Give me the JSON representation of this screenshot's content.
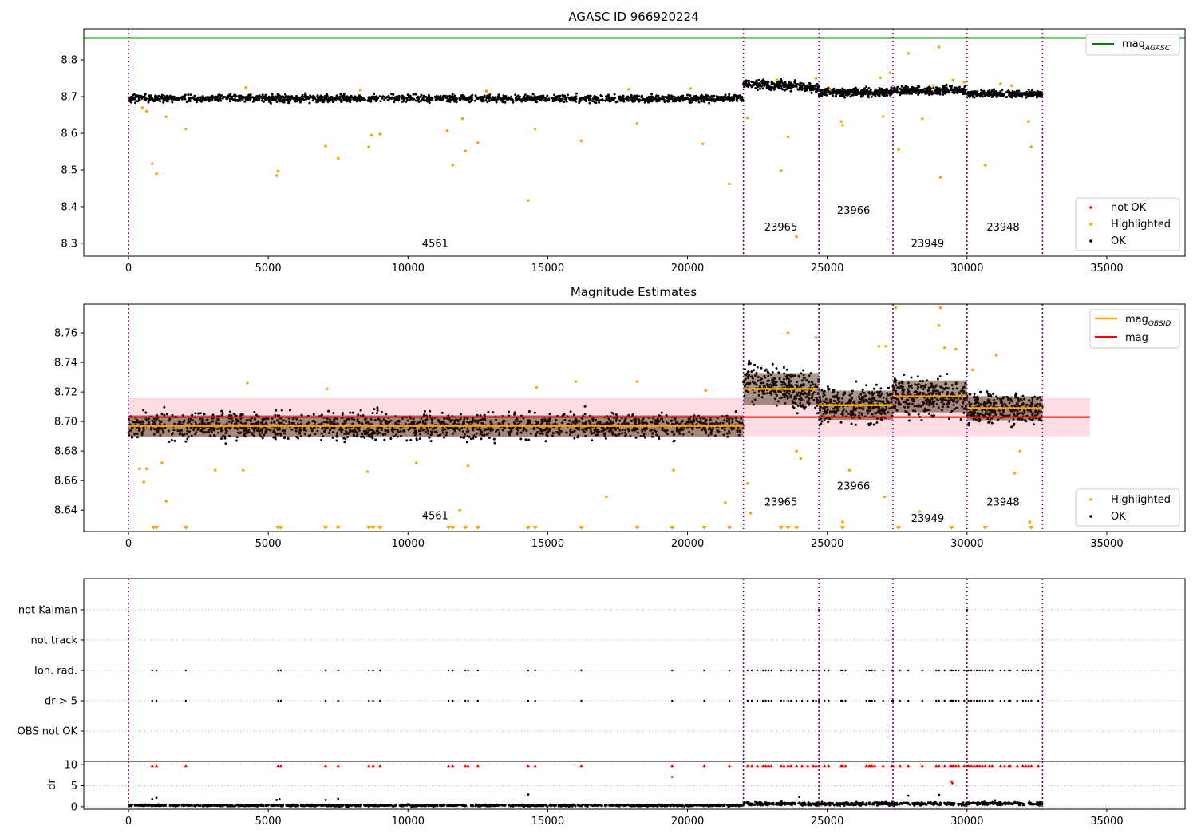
{
  "colors": {
    "ok": "#000000",
    "highlighted": "#ffa500",
    "not_ok": "#ff0000",
    "agasc_line": "#008000",
    "mag_line": "#ff0000",
    "obsid_line": "#ffa500",
    "obsid_divider": "#800080",
    "band_fill": "#ffc0cb"
  },
  "obsid_boundaries": [
    0,
    22000,
    24700,
    27350,
    30000,
    32700
  ],
  "obsids": [
    {
      "label": "4561",
      "x": 10500,
      "y_top": 8.29,
      "y_mid": 8.634
    },
    {
      "label": "23965",
      "x": 22750,
      "y_top": 8.335,
      "y_mid": 8.643
    },
    {
      "label": "23966",
      "x": 25350,
      "y_top": 8.38,
      "y_mid": 8.654
    },
    {
      "label": "23949",
      "x": 28000,
      "y_top": 8.29,
      "y_mid": 8.632
    },
    {
      "label": "23948",
      "x": 30700,
      "y_top": 8.335,
      "y_mid": 8.643
    }
  ],
  "chart_data": [
    {
      "id": "top",
      "type": "scatter",
      "title": "AGASC ID 966920224",
      "xlim": [
        -1600,
        37800
      ],
      "ylim": [
        8.265,
        8.885
      ],
      "xticks": [
        0,
        5000,
        10000,
        15000,
        20000,
        25000,
        30000,
        35000
      ],
      "xtick_labels": [
        "0",
        "5000",
        "10000",
        "15000",
        "20000",
        "25000",
        "30000",
        "35000"
      ],
      "yticks": [
        8.3,
        8.4,
        8.5,
        8.6,
        8.7,
        8.8
      ],
      "ytick_labels": [
        "8.3",
        "8.4",
        "8.5",
        "8.6",
        "8.7",
        "8.8"
      ],
      "mag_agasc": 8.86,
      "segments": [
        {
          "x0": 0,
          "x1": 22000,
          "center": 8.695,
          "spread": 0.009
        },
        {
          "x0": 22000,
          "x1": 24700,
          "center": 8.728,
          "spread": 0.011
        },
        {
          "x0": 24700,
          "x1": 27350,
          "center": 8.712,
          "spread": 0.01
        },
        {
          "x0": 27350,
          "x1": 30000,
          "center": 8.717,
          "spread": 0.01
        },
        {
          "x0": 30000,
          "x1": 32700,
          "center": 8.707,
          "spread": 0.008
        }
      ],
      "highlighted_points": [
        [
          500,
          8.67
        ],
        [
          650,
          8.66
        ],
        [
          850,
          8.517
        ],
        [
          1000,
          8.49
        ],
        [
          1350,
          8.645
        ],
        [
          2050,
          8.612
        ],
        [
          5300,
          8.485
        ],
        [
          5350,
          8.497
        ],
        [
          7050,
          8.565
        ],
        [
          7500,
          8.532
        ],
        [
          8600,
          8.563
        ],
        [
          8700,
          8.595
        ],
        [
          9000,
          8.598
        ],
        [
          11400,
          8.607
        ],
        [
          11600,
          8.513
        ],
        [
          11950,
          8.64
        ],
        [
          12050,
          8.552
        ],
        [
          12500,
          8.574
        ],
        [
          14300,
          8.417
        ],
        [
          14550,
          8.612
        ],
        [
          16200,
          8.579
        ],
        [
          18200,
          8.627
        ],
        [
          20550,
          8.571
        ],
        [
          21500,
          8.462
        ],
        [
          22150,
          8.642
        ],
        [
          23350,
          8.498
        ],
        [
          23600,
          8.59
        ],
        [
          23900,
          8.318
        ],
        [
          25550,
          8.622
        ],
        [
          25500,
          8.632
        ],
        [
          27000,
          8.646
        ],
        [
          27550,
          8.556
        ],
        [
          27900,
          8.818
        ],
        [
          28400,
          8.64
        ],
        [
          29000,
          8.835
        ],
        [
          29050,
          8.48
        ],
        [
          29500,
          8.745
        ],
        [
          29900,
          8.74
        ],
        [
          30650,
          8.513
        ],
        [
          31200,
          8.735
        ],
        [
          32300,
          8.563
        ],
        [
          32200,
          8.632
        ],
        [
          24600,
          8.75
        ],
        [
          26900,
          8.752
        ],
        [
          27250,
          8.765
        ],
        [
          12800,
          8.715
        ],
        [
          4200,
          8.725
        ],
        [
          17900,
          8.72
        ],
        [
          20100,
          8.722
        ],
        [
          8300,
          8.718
        ],
        [
          31600,
          8.73
        ],
        [
          23200,
          8.745
        ],
        [
          25100,
          8.72
        ],
        [
          28800,
          8.73
        ]
      ],
      "legend": [
        {
          "label": "mag",
          "subscript": "AGASC",
          "kind": "line",
          "color_key": "agasc_line",
          "position": "top-right"
        },
        {
          "label": "not OK",
          "kind": "marker",
          "color_key": "not_ok",
          "position": "bottom-right"
        },
        {
          "label": "Highlighted",
          "kind": "marker",
          "color_key": "highlighted",
          "position": "bottom-right"
        },
        {
          "label": "OK",
          "kind": "marker",
          "color_key": "ok",
          "position": "bottom-right"
        }
      ]
    },
    {
      "id": "middle",
      "type": "scatter",
      "title": "Magnitude Estimates",
      "xlim": [
        -1600,
        37800
      ],
      "ylim": [
        8.6255,
        8.7795
      ],
      "xticks": [
        0,
        5000,
        10000,
        15000,
        20000,
        25000,
        30000,
        35000
      ],
      "xtick_labels": [
        "0",
        "5000",
        "10000",
        "15000",
        "20000",
        "25000",
        "30000",
        "35000"
      ],
      "yticks": [
        8.64,
        8.66,
        8.68,
        8.7,
        8.72,
        8.74,
        8.76
      ],
      "ytick_labels": [
        "8.64",
        "8.66",
        "8.68",
        "8.70",
        "8.72",
        "8.74",
        "8.76"
      ],
      "mag": 8.703,
      "mag_band": [
        8.69,
        8.716
      ],
      "mag_x_range": [
        0,
        34400
      ],
      "mag_obsid": [
        {
          "x0": 0,
          "x1": 22000,
          "value": 8.697
        },
        {
          "x0": 22000,
          "x1": 24700,
          "value": 8.722
        },
        {
          "x0": 24700,
          "x1": 27350,
          "value": 8.711
        },
        {
          "x0": 27350,
          "x1": 30000,
          "value": 8.717
        },
        {
          "x0": 30000,
          "x1": 32700,
          "value": 8.709
        }
      ],
      "segments": [
        {
          "x0": 0,
          "x1": 22000,
          "center": 8.697,
          "spread": 0.008
        },
        {
          "x0": 22000,
          "x1": 24700,
          "center": 8.722,
          "spread": 0.012
        },
        {
          "x0": 24700,
          "x1": 27350,
          "center": 8.711,
          "spread": 0.011
        },
        {
          "x0": 27350,
          "x1": 30000,
          "center": 8.717,
          "spread": 0.012
        },
        {
          "x0": 30000,
          "x1": 32700,
          "center": 8.709,
          "spread": 0.009
        }
      ],
      "highlighted_points": [
        [
          400,
          8.668
        ],
        [
          650,
          8.668
        ],
        [
          550,
          8.659
        ],
        [
          1350,
          8.646
        ],
        [
          1200,
          8.672
        ],
        [
          3100,
          8.667
        ],
        [
          4100,
          8.667
        ],
        [
          8550,
          8.666
        ],
        [
          11850,
          8.64
        ],
        [
          17100,
          8.649
        ],
        [
          19500,
          8.667
        ],
        [
          21350,
          8.645
        ],
        [
          22150,
          8.658
        ],
        [
          22250,
          8.638
        ],
        [
          23600,
          8.76
        ],
        [
          24600,
          8.757
        ],
        [
          25550,
          8.632
        ],
        [
          27050,
          8.649
        ],
        [
          27450,
          8.777
        ],
        [
          29050,
          8.777
        ],
        [
          29000,
          8.765
        ],
        [
          31050,
          8.745
        ],
        [
          31700,
          8.665
        ],
        [
          32250,
          8.632
        ],
        [
          24050,
          8.675
        ],
        [
          23900,
          8.68
        ],
        [
          28300,
          8.639
        ],
        [
          20650,
          8.721
        ],
        [
          18200,
          8.727
        ],
        [
          7100,
          8.722
        ],
        [
          4250,
          8.726
        ],
        [
          14600,
          8.723
        ],
        [
          26850,
          8.751
        ],
        [
          27100,
          8.751
        ],
        [
          29200,
          8.75
        ],
        [
          30200,
          8.735
        ],
        [
          10300,
          8.672
        ],
        [
          12150,
          8.67
        ],
        [
          16000,
          8.727
        ],
        [
          25800,
          8.667
        ],
        [
          31900,
          8.68
        ],
        [
          29600,
          8.749
        ]
      ],
      "below_axis_markers": [
        900,
        1000,
        2050,
        5350,
        5450,
        7050,
        7500,
        8600,
        8750,
        9000,
        11450,
        11600,
        12050,
        12500,
        14300,
        14550,
        16200,
        18200,
        19450,
        20600,
        21500,
        23350,
        23600,
        23900,
        25550,
        27550,
        29450,
        30650,
        32300
      ],
      "legend": [
        {
          "label": "mag",
          "subscript": "OBSID",
          "kind": "line",
          "color_key": "obsid_line",
          "position": "top-right"
        },
        {
          "label": "mag",
          "kind": "line",
          "color_key": "mag_line",
          "position": "top-right"
        },
        {
          "label": "Highlighted",
          "kind": "marker",
          "color_key": "highlighted",
          "position": "bottom-right"
        },
        {
          "label": "OK",
          "kind": "marker",
          "color_key": "ok",
          "position": "bottom-right"
        }
      ]
    },
    {
      "id": "flags",
      "type": "scatter",
      "xlim": [
        -1600,
        37800
      ],
      "categories": [
        "not Kalman",
        "not track",
        "Ion. rad.",
        "dr > 5",
        "OBS not OK"
      ],
      "flag_points": {
        "not Kalman": [
          24700,
          30000
        ],
        "not track": [],
        "Ion. rad.": [
          850,
          1000,
          2050,
          5350,
          5450,
          7050,
          7500,
          8600,
          8750,
          9000,
          11450,
          11600,
          12050,
          12150,
          12500,
          14300,
          14550,
          16200,
          19450,
          20600,
          21500,
          22150,
          22300,
          22500,
          22700,
          22800,
          22900,
          23000,
          23350,
          23450,
          23600,
          23700,
          23900,
          24100,
          24300,
          24500,
          24600,
          24700,
          24900,
          25050,
          25500,
          25550,
          25650,
          26400,
          26500,
          26550,
          26600,
          26700,
          27000,
          27300,
          27350,
          27600,
          27900,
          28400,
          28900,
          29000,
          29200,
          29400,
          29450,
          29500,
          29600,
          29700,
          29900,
          30050,
          30150,
          30250,
          30350,
          30450,
          30550,
          30650,
          30800,
          30900,
          31200,
          31350,
          31500,
          31550,
          31800,
          32000,
          32100,
          32200,
          32300,
          32550
        ],
        "dr > 5": [
          850,
          1000,
          2050,
          5350,
          5450,
          7050,
          7500,
          8600,
          8750,
          9000,
          11450,
          11600,
          12050,
          12150,
          12500,
          14300,
          14550,
          16200,
          19450,
          20600,
          21500,
          22150,
          22300,
          22500,
          22700,
          22800,
          22900,
          23000,
          23350,
          23450,
          23600,
          23700,
          23900,
          24100,
          24300,
          24500,
          24600,
          24700,
          24900,
          25050,
          25500,
          25550,
          25650,
          26400,
          26500,
          26550,
          26600,
          26700,
          27000,
          27300,
          27350,
          27600,
          27900,
          28400,
          28900,
          29000,
          29200,
          29400,
          29450,
          29500,
          29600,
          29700,
          29900,
          30050,
          30150,
          30250,
          30350,
          30450,
          30550,
          30650,
          30800,
          30900,
          31200,
          31350,
          31500,
          31550,
          31800,
          32000,
          32100,
          32200,
          32300,
          32550
        ],
        "OBS not OK": []
      }
    },
    {
      "id": "dr",
      "type": "scatter",
      "ylabel": "dr",
      "xlim": [
        -1600,
        37800
      ],
      "ylim": [
        -0.6,
        10.8
      ],
      "xticks": [
        0,
        5000,
        10000,
        15000,
        20000,
        25000,
        30000,
        35000
      ],
      "xtick_labels": [
        "0",
        "5000",
        "10000",
        "15000",
        "20000",
        "25000",
        "30000",
        "35000"
      ],
      "yticks": [
        0,
        5,
        10
      ],
      "ytick_labels": [
        "0",
        "5",
        "10"
      ],
      "segments": [
        {
          "x0": 0,
          "x1": 22000,
          "center": 0.3,
          "spread": 0.2
        },
        {
          "x0": 22000,
          "x1": 32700,
          "center": 0.7,
          "spread": 0.35
        }
      ],
      "black_outliers": [
        [
          850,
          1.8
        ],
        [
          1000,
          2.1
        ],
        [
          5300,
          1.6
        ],
        [
          5400,
          1.8
        ],
        [
          7050,
          1.6
        ],
        [
          7500,
          1.9
        ],
        [
          14300,
          2.9
        ],
        [
          24000,
          2.3
        ],
        [
          27900,
          2.6
        ],
        [
          29000,
          2.8
        ],
        [
          31000,
          1.5
        ]
      ],
      "capped_points": [
        850,
        1000,
        2050,
        5350,
        5450,
        7050,
        7500,
        8600,
        8750,
        9000,
        11450,
        11600,
        12050,
        12150,
        12500,
        14300,
        14550,
        16200,
        19450,
        20600,
        21500,
        22150,
        22300,
        22500,
        22700,
        22800,
        22900,
        23000,
        23350,
        23450,
        23600,
        23700,
        23900,
        24100,
        24300,
        24500,
        24600,
        24700,
        24900,
        25050,
        25500,
        25550,
        25650,
        26400,
        26500,
        26550,
        26600,
        26700,
        27000,
        27300,
        27350,
        27600,
        27900,
        28400,
        28900,
        29000,
        29200,
        29400,
        29450,
        29500,
        29600,
        29700,
        29900,
        30050,
        30150,
        30250,
        30350,
        30450,
        30550,
        30650,
        30800,
        30900,
        31200,
        31350,
        31500,
        31550,
        31800,
        32000,
        32100,
        32200,
        32300,
        32550
      ],
      "red_points": [
        [
          19450,
          7.1
        ],
        [
          29450,
          6.0
        ],
        [
          29480,
          5.6
        ]
      ]
    }
  ]
}
